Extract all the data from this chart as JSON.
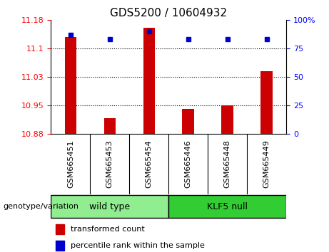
{
  "title": "GDS5200 / 10604932",
  "samples": [
    "GSM665451",
    "GSM665453",
    "GSM665454",
    "GSM665446",
    "GSM665448",
    "GSM665449"
  ],
  "red_values": [
    11.13,
    10.915,
    11.155,
    10.94,
    10.95,
    11.04
  ],
  "blue_values": [
    87,
    83,
    90,
    83,
    83,
    83
  ],
  "ylim_left": [
    10.875,
    11.175
  ],
  "ylim_right": [
    0,
    100
  ],
  "left_ticks": [
    10.875,
    10.95,
    11.025,
    11.1,
    11.175
  ],
  "right_ticks": [
    0,
    25,
    50,
    75,
    100
  ],
  "groups": [
    {
      "label": "wild type",
      "indices": [
        0,
        1,
        2
      ],
      "color": "#90EE90"
    },
    {
      "label": "KLF5 null",
      "indices": [
        3,
        4,
        5
      ],
      "color": "#32CD32"
    }
  ],
  "group_label": "genotype/variation",
  "legend_red": "transformed count",
  "legend_blue": "percentile rank within the sample",
  "bar_color": "#CC0000",
  "dot_color": "#0000CC",
  "baseline": 10.875,
  "gray_tick_color": "#C8C8C8",
  "grid_color": "#000000",
  "bar_width": 0.3,
  "title_fontsize": 11,
  "tick_fontsize": 8,
  "label_fontsize": 9,
  "legend_fontsize": 8
}
